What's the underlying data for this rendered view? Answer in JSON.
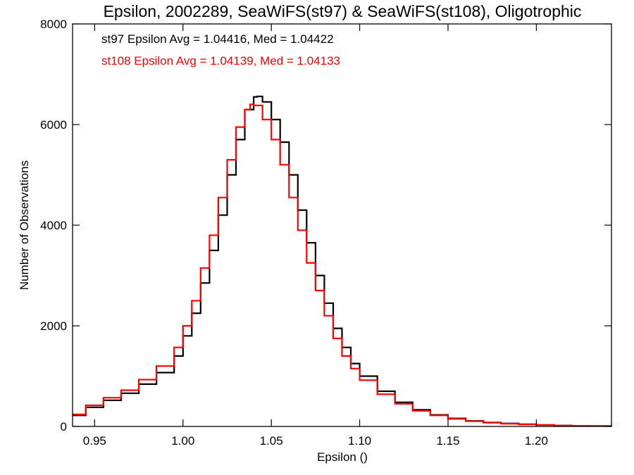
{
  "chart_data": {
    "type": "line",
    "title": "Epsilon, 2002289, SeaWiFS(st97) & SeaWiFS(st108), Oligotrophic",
    "xlabel": "Epsilon ()",
    "ylabel": "Number of Observations",
    "xlim": [
      0.9375,
      1.2425
    ],
    "ylim": [
      0,
      8000
    ],
    "x_ticks": [
      0.95,
      1.0,
      1.05,
      1.1,
      1.15,
      1.2
    ],
    "x_tick_labels": [
      "0.95",
      "1.00",
      "1.05",
      "1.10",
      "1.15",
      "1.20"
    ],
    "y_ticks": [
      0,
      2000,
      4000,
      6000,
      8000
    ],
    "y_tick_labels": [
      "0",
      "2000",
      "4000",
      "6000",
      "8000"
    ],
    "grid": false,
    "annotations": [
      {
        "text": "st97 Epsilon Avg = 1.04416, Med = 1.04422",
        "color": "#000000"
      },
      {
        "text": "st108 Epsilon Avg = 1.04139, Med = 1.04133",
        "color": "#ff0000"
      }
    ],
    "series": [
      {
        "color": "#000000",
        "x": [
          0.9375,
          0.945,
          0.955,
          0.965,
          0.975,
          0.985,
          0.995,
          1.0,
          1.005,
          1.01,
          1.015,
          1.02,
          1.025,
          1.03,
          1.035,
          1.04,
          1.042,
          1.045,
          1.05,
          1.055,
          1.06,
          1.065,
          1.07,
          1.075,
          1.08,
          1.085,
          1.09,
          1.095,
          1.1,
          1.11,
          1.12,
          1.13,
          1.14,
          1.15,
          1.16,
          1.17,
          1.18,
          1.19,
          1.2,
          1.21,
          1.22,
          1.23,
          1.2425
        ],
        "y": [
          220,
          380,
          520,
          660,
          840,
          1070,
          1400,
          1800,
          2250,
          2850,
          3500,
          4200,
          5000,
          5700,
          6300,
          6550,
          6560,
          6450,
          6100,
          5650,
          5000,
          4300,
          3650,
          3000,
          2450,
          1950,
          1570,
          1250,
          1000,
          700,
          480,
          330,
          230,
          160,
          110,
          80,
          60,
          45,
          30,
          20,
          12,
          8,
          5
        ]
      },
      {
        "color": "#ff0000",
        "x": [
          0.9375,
          0.945,
          0.955,
          0.965,
          0.975,
          0.985,
          0.995,
          1.0,
          1.005,
          1.01,
          1.015,
          1.02,
          1.025,
          1.03,
          1.035,
          1.038,
          1.04,
          1.045,
          1.05,
          1.055,
          1.06,
          1.065,
          1.07,
          1.075,
          1.08,
          1.085,
          1.09,
          1.095,
          1.1,
          1.11,
          1.12,
          1.13,
          1.14,
          1.15,
          1.16,
          1.17,
          1.18,
          1.19,
          1.2,
          1.21,
          1.22,
          1.23,
          1.2425
        ],
        "y": [
          240,
          420,
          570,
          720,
          930,
          1200,
          1570,
          2000,
          2500,
          3150,
          3800,
          4550,
          5300,
          5950,
          6300,
          6400,
          6380,
          6100,
          5700,
          5200,
          4550,
          3900,
          3250,
          2700,
          2200,
          1750,
          1400,
          1150,
          920,
          640,
          450,
          310,
          220,
          150,
          105,
          75,
          55,
          40,
          28,
          18,
          12,
          8,
          5
        ]
      }
    ]
  }
}
